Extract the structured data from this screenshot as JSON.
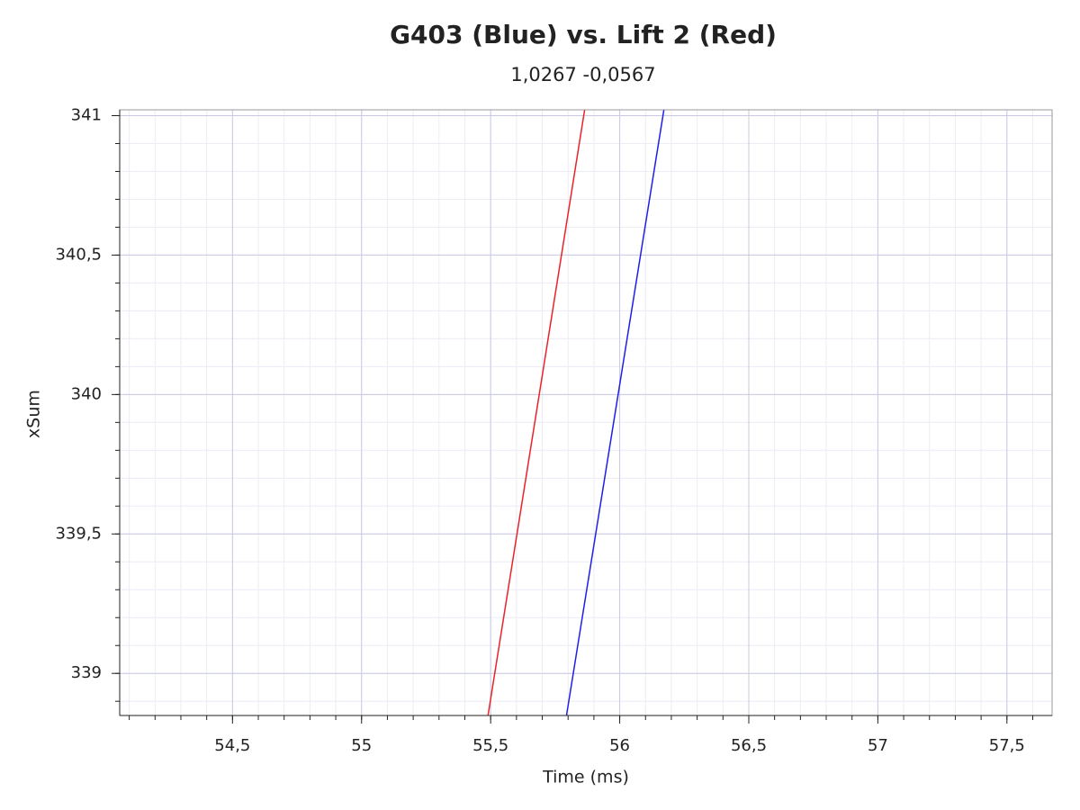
{
  "chart_data": {
    "type": "line",
    "title": "G403 (Blue) vs. Lift 2 (Red)",
    "subtitle": "1,0267 -0,0567",
    "xlabel": "Time (ms)",
    "ylabel": "xSum",
    "series": [
      {
        "color": "#e8232a",
        "x": [
          55.49,
          55.864
        ],
        "values": [
          338.85,
          341.02
        ]
      },
      {
        "color": "#1f1fe8",
        "x": [
          55.794,
          56.171
        ],
        "values": [
          338.85,
          341.02
        ]
      }
    ],
    "xlim": [
      54.063,
      57.675
    ],
    "xticks": [
      {
        "value": 54.5,
        "label": "54,5"
      },
      55,
      {
        "value": 55.5,
        "label": "55,5"
      },
      56,
      {
        "value": 56.5,
        "label": "56,5"
      },
      57,
      {
        "value": 57.5,
        "label": "57,5"
      }
    ],
    "ylim": [
      338.849,
      341.021
    ],
    "yticks": [
      339,
      {
        "value": 339.5,
        "label": "339,5"
      },
      340,
      {
        "value": 340.5,
        "label": "340,5"
      },
      341
    ],
    "grid": true,
    "minor_divisions": 5
  }
}
